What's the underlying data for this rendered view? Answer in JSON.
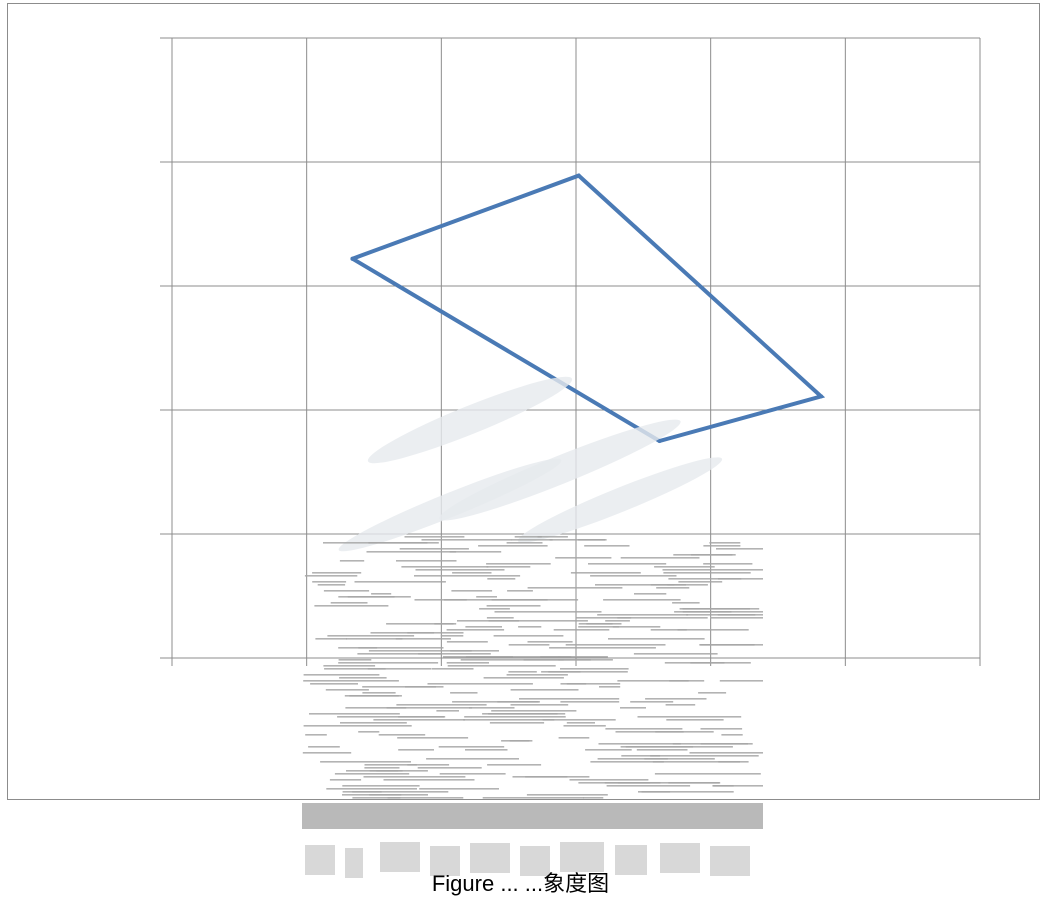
{
  "chart_data": {
    "type": "line",
    "title": "",
    "xlabel": "",
    "ylabel": "",
    "grid": true,
    "xlim": [
      0,
      6
    ],
    "ylim": [
      0,
      5
    ],
    "series": [
      {
        "closed": true,
        "color": "#4a7ab5",
        "points": [
          {
            "x": 1.34,
            "y": 3.22
          },
          {
            "x": 3.02,
            "y": 3.89
          },
          {
            "x": 4.82,
            "y": 2.11
          },
          {
            "x": 3.62,
            "y": 1.75
          },
          {
            "x": 1.34,
            "y": 3.22
          }
        ]
      }
    ]
  },
  "caption": "Figure ... ...象度图",
  "watermark": {
    "kind": "stamp",
    "color": "#a6a6a6"
  }
}
